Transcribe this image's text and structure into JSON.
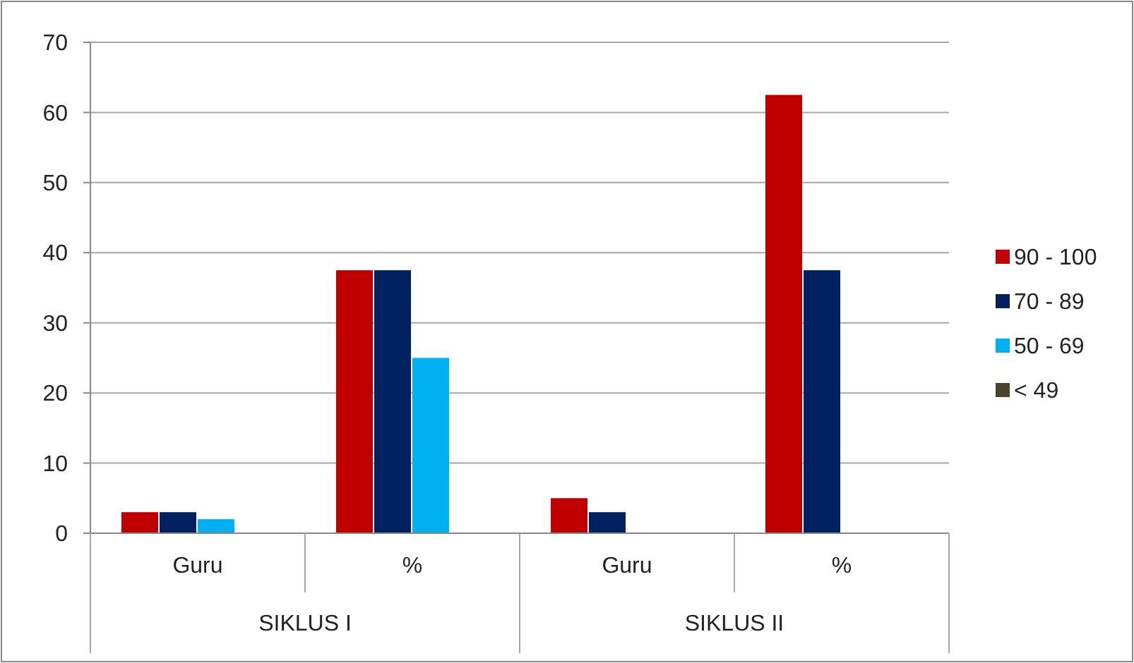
{
  "chart_data": {
    "type": "bar",
    "categories": [
      "Guru",
      "%",
      "Guru",
      "%"
    ],
    "annotations": [
      "SIKLUS I",
      "SIKLUS II"
    ],
    "series": [
      {
        "name": "90 - 100",
        "color": "#c00000",
        "values": [
          3,
          37.5,
          5,
          62.5
        ]
      },
      {
        "name": "70 - 89",
        "color": "#002060",
        "values": [
          3,
          37.5,
          3,
          37.5
        ]
      },
      {
        "name": "50 - 69",
        "color": "#00b0f0",
        "values": [
          2,
          25,
          0,
          0
        ]
      },
      {
        "name": "< 49",
        "color": "#4a452a",
        "values": [
          0,
          0,
          0,
          0
        ]
      }
    ],
    "ylim": [
      0,
      70
    ],
    "yticks": [
      0,
      10,
      20,
      30,
      40,
      50,
      60,
      70
    ],
    "grid": "y",
    "legend": "right"
  }
}
